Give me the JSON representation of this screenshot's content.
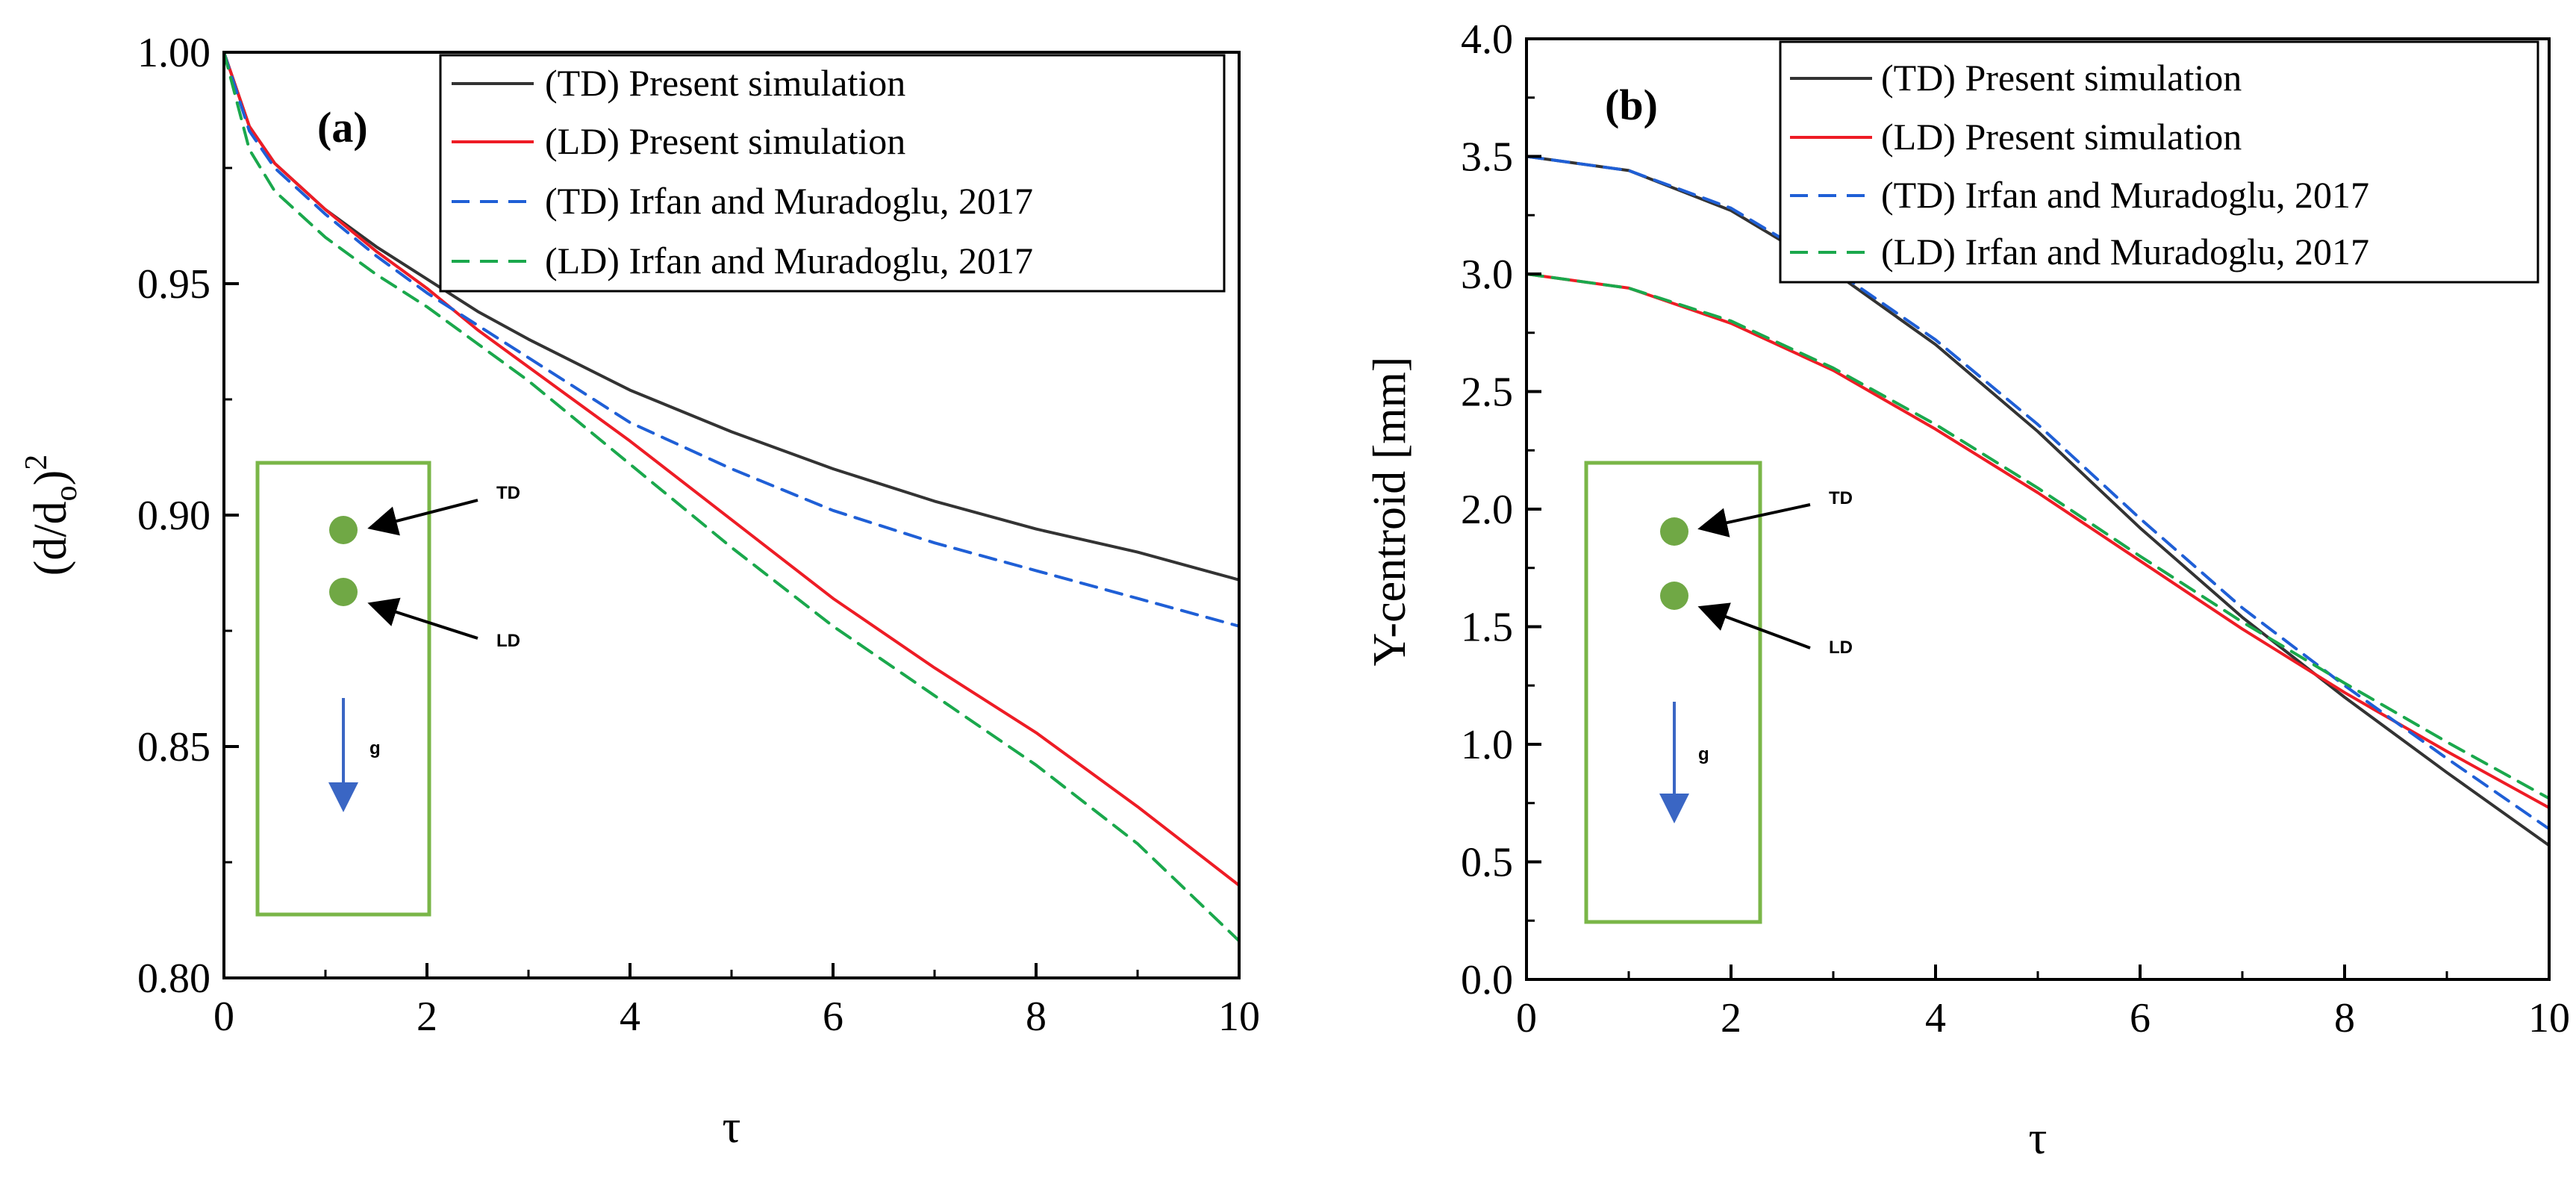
{
  "chart_data": [
    {
      "type": "line",
      "panel_label": "(a)",
      "xlabel": "τ",
      "ylabel_main": "(d/d",
      "ylabel_sub": "o",
      "ylabel_close": ")",
      "ylabel_sup": "2",
      "xlim": [
        0,
        10
      ],
      "ylim": [
        0.8,
        1.0
      ],
      "xticks": [
        0,
        2,
        4,
        6,
        8,
        10
      ],
      "xtick_labels": [
        "0",
        "2",
        "4",
        "6",
        "8",
        "10"
      ],
      "yticks": [
        0.8,
        0.85,
        0.9,
        0.95,
        1.0
      ],
      "ytick_labels": [
        "0.80",
        "0.85",
        "0.90",
        "0.95",
        "1.00"
      ],
      "legend_position": "top-right",
      "series": [
        {
          "name": "(TD) Present simulation",
          "color": "#333333",
          "dash": "solid",
          "x": [
            0,
            0.25,
            0.5,
            1,
            1.5,
            2,
            2.5,
            3,
            4,
            5,
            6,
            7,
            8,
            9,
            10
          ],
          "y": [
            1.0,
            0.984,
            0.976,
            0.966,
            0.958,
            0.951,
            0.944,
            0.938,
            0.927,
            0.918,
            0.91,
            0.903,
            0.897,
            0.892,
            0.886
          ]
        },
        {
          "name": "(LD) Present simulation",
          "color": "#ee1c25",
          "dash": "solid",
          "x": [
            0,
            0.25,
            0.5,
            1,
            1.5,
            2,
            2.5,
            3,
            4,
            5,
            6,
            7,
            8,
            9,
            10
          ],
          "y": [
            1.0,
            0.984,
            0.976,
            0.966,
            0.957,
            0.949,
            0.94,
            0.932,
            0.916,
            0.899,
            0.882,
            0.867,
            0.853,
            0.837,
            0.82
          ]
        },
        {
          "name": "(TD) Irfan and Muradoglu, 2017",
          "color": "#1f5fd6",
          "dash": "dashed",
          "x": [
            0,
            0.25,
            0.5,
            1,
            1.5,
            2,
            2.5,
            3,
            4,
            5,
            6,
            7,
            8,
            9,
            10
          ],
          "y": [
            1.0,
            0.983,
            0.975,
            0.965,
            0.956,
            0.948,
            0.941,
            0.934,
            0.92,
            0.91,
            0.901,
            0.894,
            0.888,
            0.882,
            0.876
          ]
        },
        {
          "name": "(LD) Irfan and Muradoglu, 2017",
          "color": "#1aa84c",
          "dash": "dashed",
          "x": [
            0,
            0.25,
            0.5,
            1,
            1.5,
            2,
            2.5,
            3,
            4,
            5,
            6,
            7,
            8,
            9,
            10
          ],
          "y": [
            1.0,
            0.979,
            0.97,
            0.96,
            0.952,
            0.945,
            0.937,
            0.929,
            0.911,
            0.893,
            0.876,
            0.861,
            0.846,
            0.829,
            0.808
          ]
        }
      ],
      "inset": {
        "td_label": "TD",
        "ld_label": "LD",
        "g_label": "g"
      }
    },
    {
      "type": "line",
      "panel_label": "(b)",
      "xlabel": "τ",
      "ylabel": "Y-centroid [mm]",
      "xlim": [
        0,
        10
      ],
      "ylim": [
        0.0,
        4.0
      ],
      "xticks": [
        0,
        2,
        4,
        6,
        8,
        10
      ],
      "xtick_labels": [
        "0",
        "2",
        "4",
        "6",
        "8",
        "10"
      ],
      "yticks": [
        0.0,
        0.5,
        1.0,
        1.5,
        2.0,
        2.5,
        3.0,
        3.5,
        4.0
      ],
      "ytick_labels": [
        "0.0",
        "0.5",
        "1.0",
        "1.5",
        "2.0",
        "2.5",
        "3.0",
        "3.5",
        "4.0"
      ],
      "legend_position": "top-right",
      "series": [
        {
          "name": "(TD) Present simulation",
          "color": "#333333",
          "dash": "solid",
          "x": [
            0,
            1,
            2,
            3,
            4,
            5,
            6,
            7,
            8,
            9,
            10
          ],
          "y": [
            3.5,
            3.44,
            3.27,
            3.01,
            2.7,
            2.33,
            1.92,
            1.54,
            1.2,
            0.88,
            0.57
          ]
        },
        {
          "name": "(LD) Present simulation",
          "color": "#ee1c25",
          "dash": "solid",
          "x": [
            0,
            1,
            2,
            3,
            4,
            5,
            6,
            7,
            8,
            9,
            10
          ],
          "y": [
            3.0,
            2.94,
            2.79,
            2.59,
            2.34,
            2.07,
            1.78,
            1.49,
            1.22,
            0.97,
            0.73
          ]
        },
        {
          "name": "(TD) Irfan and Muradoglu, 2017",
          "color": "#1f5fd6",
          "dash": "dashed",
          "x": [
            0,
            1,
            2,
            3,
            4,
            5,
            6,
            7,
            8,
            9,
            10
          ],
          "y": [
            3.5,
            3.44,
            3.28,
            3.02,
            2.72,
            2.36,
            1.96,
            1.58,
            1.25,
            0.94,
            0.64
          ]
        },
        {
          "name": "(LD) Irfan and Muradoglu, 2017",
          "color": "#1aa84c",
          "dash": "dashed",
          "x": [
            0,
            1,
            2,
            3,
            4,
            5,
            6,
            7,
            8,
            9,
            10
          ],
          "y": [
            3.0,
            2.94,
            2.8,
            2.6,
            2.36,
            2.09,
            1.8,
            1.52,
            1.26,
            1.01,
            0.77
          ]
        }
      ],
      "inset": {
        "td_label": "TD",
        "ld_label": "LD",
        "g_label": "g"
      }
    }
  ]
}
